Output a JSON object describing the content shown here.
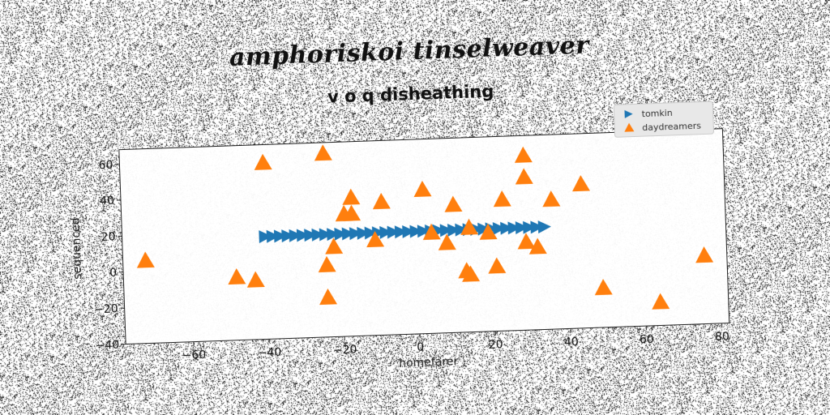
{
  "main_title": "amphoriskoi tinselweaver",
  "chart_data": {
    "type": "scatter",
    "title": "v o q disheathing",
    "xlabel": "homefarer",
    "ylabel": "sequenced",
    "xlim": [
      -78,
      82
    ],
    "ylim": [
      -40,
      68
    ],
    "xticks": [
      -60,
      -40,
      -20,
      0,
      20,
      40,
      60,
      80
    ],
    "yticks": [
      -40,
      -20,
      0,
      20,
      40,
      60
    ],
    "grid": false,
    "legend_position": "top-right",
    "series": [
      {
        "name": "tomkin",
        "marker": "triangle-right",
        "color": "#1f77b4",
        "x": [
          -40,
          -38,
          -36,
          -34,
          -32,
          -30,
          -28,
          -26,
          -24,
          -22,
          -20,
          -18,
          -16,
          -14,
          -12,
          -10,
          -8,
          -6,
          -4,
          -2,
          0,
          2,
          4,
          6,
          8,
          10,
          12,
          14,
          16,
          18,
          20,
          22,
          24,
          26,
          28,
          30,
          32,
          34
        ],
        "y": [
          17,
          17,
          17,
          17,
          17,
          17,
          17,
          17,
          17,
          17,
          17,
          17,
          17,
          17,
          17,
          17,
          17,
          17,
          17,
          17,
          17,
          17,
          17,
          17,
          17,
          17,
          17,
          17,
          17,
          17,
          17,
          17,
          17,
          17,
          17,
          17,
          17,
          17
        ]
      },
      {
        "name": "daydreamers",
        "marker": "triangle-up",
        "color": "#ff7f0e",
        "x": [
          -72,
          -40,
          -24,
          -48,
          -43,
          -24,
          -22,
          -24,
          -17,
          -19,
          -17,
          -9,
          -11,
          2,
          4,
          10,
          8,
          14,
          13,
          14,
          19,
          21,
          23,
          29,
          29,
          29,
          32,
          36,
          44,
          49,
          64,
          76
        ],
        "y": [
          6,
          58,
          62,
          -5,
          -7,
          0,
          10,
          -18,
          37,
          28,
          28,
          34,
          13,
          40,
          16,
          31,
          10,
          18,
          -6,
          -8,
          15,
          -4,
          33,
          57,
          45,
          9,
          6,
          32,
          40,
          -18,
          -27,
          -2
        ]
      }
    ]
  }
}
